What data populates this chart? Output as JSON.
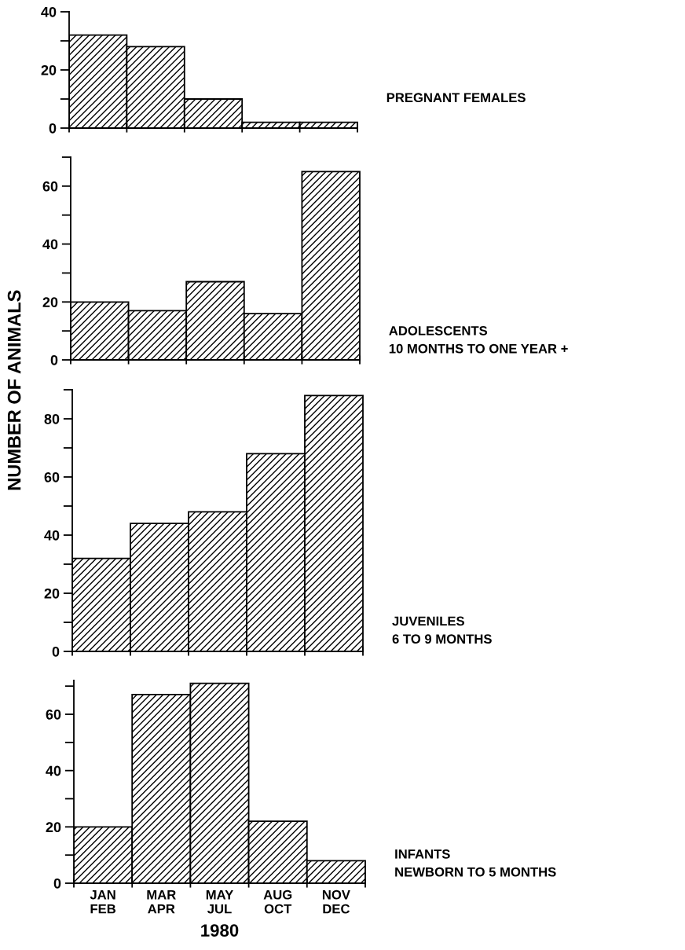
{
  "chart_data": [
    {
      "type": "bar",
      "annotations": [
        "PREGNANT FEMALES"
      ],
      "categories": [
        null,
        null,
        null,
        null,
        null
      ],
      "values": [
        32,
        28,
        10,
        2,
        2
      ],
      "color": "#000000",
      "ylim": [
        0,
        40
      ],
      "yticks": [
        0,
        {
          "value": 10,
          "label": null
        },
        20,
        {
          "value": 30,
          "label": null
        },
        40
      ],
      "tick_labels": "y",
      "grid": false
    },
    {
      "type": "bar",
      "annotations": [
        "ADOLESCENTS\n10 MONTHS TO ONE YEAR +"
      ],
      "ylabel": "NUMBER OF ANIMALS",
      "categories": [
        null,
        null,
        null,
        null,
        null
      ],
      "values": [
        20,
        17,
        27,
        16,
        65
      ],
      "color": "#000000",
      "ylim": [
        0,
        70
      ],
      "yticks": [
        0,
        {
          "value": 10,
          "label": null
        },
        20,
        {
          "value": 30,
          "label": null
        },
        40,
        {
          "value": 50,
          "label": null
        },
        60,
        {
          "value": 70,
          "label": null
        }
      ],
      "tick_labels": "y",
      "grid": false
    },
    {
      "type": "bar",
      "annotations": [
        "JUVENILES\n6 TO 9 MONTHS"
      ],
      "categories": [
        null,
        null,
        null,
        null,
        null
      ],
      "values": [
        32,
        44,
        48,
        68,
        88
      ],
      "color": "#000000",
      "ylim": [
        0,
        90
      ],
      "yticks": [
        0,
        {
          "value": 10,
          "label": null
        },
        20,
        {
          "value": 30,
          "label": null
        },
        40,
        {
          "value": 50,
          "label": null
        },
        60,
        {
          "value": 70,
          "label": null
        },
        80,
        {
          "value": 90,
          "label": null
        }
      ],
      "tick_labels": "y",
      "grid": false
    },
    {
      "type": "bar",
      "annotations": [
        "INFANTS\nNEWBORN TO 5 MONTHS"
      ],
      "xlabel": "1980",
      "categories": [
        "JAN\nFEB",
        "MAR\nAPR",
        "MAY\nJUL",
        "AUG\nOCT",
        "NOV\nDEC"
      ],
      "values": [
        20,
        67,
        71,
        22,
        8
      ],
      "color": "#000000",
      "ylim": [
        0,
        72
      ],
      "yticks": [
        0,
        {
          "value": 10,
          "label": null
        },
        20,
        {
          "value": 30,
          "label": null
        },
        40,
        {
          "value": 50,
          "label": null
        },
        60,
        {
          "value": 70,
          "label": null
        }
      ],
      "grid": false
    }
  ]
}
